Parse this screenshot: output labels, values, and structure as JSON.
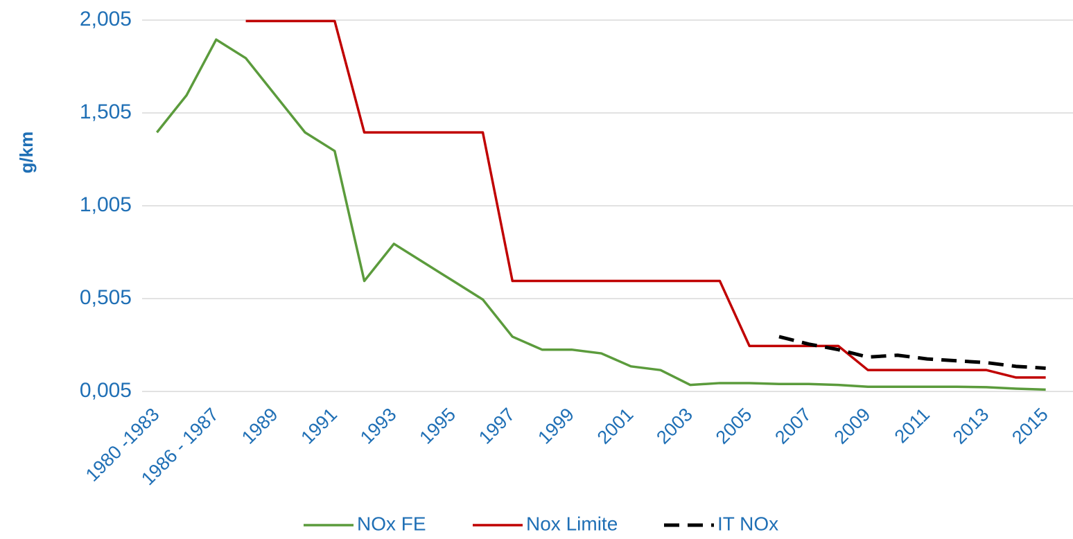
{
  "chart_data": {
    "type": "line",
    "y_label": "g/km",
    "categories": [
      "1980 -1983",
      null,
      "1986 - 1987",
      null,
      "1989",
      null,
      "1991",
      null,
      "1993",
      null,
      "1995",
      null,
      "1997",
      null,
      "1999",
      null,
      "2001",
      null,
      "2003",
      null,
      "2005",
      null,
      "2007",
      null,
      "2009",
      null,
      "2011",
      null,
      "2013",
      null,
      "2015"
    ],
    "series": [
      {
        "name": "NOx FE",
        "color": "#5b9b3c",
        "dash": false,
        "values": [
          1.4,
          1.6,
          1.9,
          1.8,
          1.6,
          1.4,
          1.3,
          0.6,
          0.8,
          0.7,
          0.6,
          0.5,
          0.3,
          0.23,
          0.23,
          0.21,
          0.14,
          0.12,
          0.04,
          0.05,
          0.05,
          0.045,
          0.045,
          0.04,
          0.03,
          0.03,
          0.03,
          0.03,
          0.028,
          0.02,
          0.015
        ]
      },
      {
        "name": "Nox Limite",
        "color": "#c00000",
        "dash": false,
        "values": [
          null,
          null,
          null,
          2.0,
          2.0,
          2.0,
          2.0,
          1.4,
          1.4,
          1.4,
          1.4,
          1.4,
          0.6,
          0.6,
          0.6,
          0.6,
          0.6,
          0.6,
          0.6,
          0.6,
          0.25,
          0.25,
          0.25,
          0.25,
          0.12,
          0.12,
          0.12,
          0.12,
          0.12,
          0.08,
          0.08
        ]
      },
      {
        "name": "IT NOx",
        "color": "#000000",
        "dash": true,
        "values": [
          null,
          null,
          null,
          null,
          null,
          null,
          null,
          null,
          null,
          null,
          null,
          null,
          null,
          null,
          null,
          null,
          null,
          null,
          null,
          null,
          null,
          0.3,
          0.26,
          0.23,
          0.19,
          0.2,
          0.18,
          0.17,
          0.16,
          0.14,
          0.13
        ]
      }
    ],
    "ylim": [
      0.005,
      2.005
    ],
    "yticks": [
      {
        "value": 0.005,
        "label": "0,005"
      },
      {
        "value": 0.505,
        "label": "0,505"
      },
      {
        "value": 1.005,
        "label": "1,005"
      },
      {
        "value": 1.505,
        "label": "1,505"
      },
      {
        "value": 2.005,
        "label": "2,005"
      }
    ],
    "grid": true,
    "legend": "bottom"
  }
}
